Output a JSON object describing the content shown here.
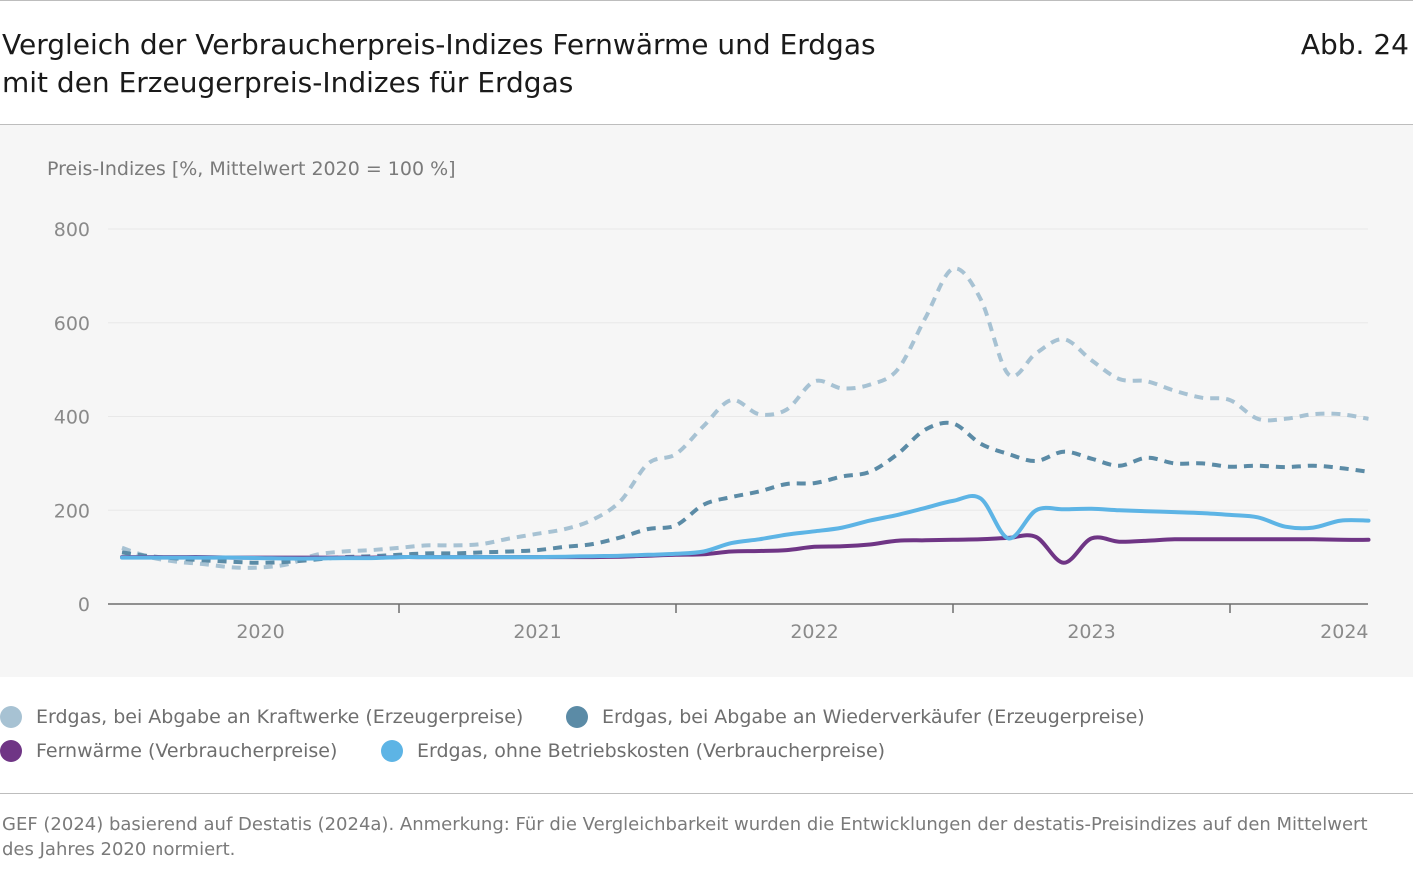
{
  "header": {
    "title_line1": "Vergleich der Verbraucherpreis-Indizes Fernwärme und Erdgas",
    "title_line2": "mit den Erzeugerpreis-Indizes für Erdgas",
    "figure_label": "Abb. 24"
  },
  "legend": {
    "items": [
      {
        "label": "Erdgas, bei Abgabe an Kraftwerke (Erzeugerpreise)",
        "color": "#a7c2d3"
      },
      {
        "label": "Erdgas, bei Abgabe an Wiederverkäufer (Erzeugerpreise)",
        "color": "#5b8ba6"
      },
      {
        "label": "Fernwärme (Verbraucherpreise)",
        "color": "#6f3585"
      },
      {
        "label": "Erdgas, ohne Betriebskosten (Verbraucherpreise)",
        "color": "#5db4e5"
      }
    ]
  },
  "footer": {
    "source": "GEF (2024) basierend auf Destatis (2024a). Anmerkung: Für die Vergleichbarkeit wurden die Entwicklungen der destatis-Preisindizes auf den Mittelwert des Jahres 2020 normiert."
  },
  "chart_data": {
    "type": "line",
    "title": "Vergleich der Verbraucherpreis-Indizes Fernwärme und Erdgas mit den Erzeugerpreis-Indizes für Erdgas",
    "ylabel": "Preis-Indizes [%, Mittelwert 2020 = 100 %]",
    "xlabel": "",
    "ylim": [
      0,
      800
    ],
    "yticks": [
      0,
      200,
      400,
      600,
      800
    ],
    "xlim": [
      0,
      45.5
    ],
    "x_unit": "months since Jan 2020 (0 = Jan 2020)",
    "year_labels": [
      {
        "label": "2020",
        "at": 5
      },
      {
        "label": "2021",
        "at": 15
      },
      {
        "label": "2022",
        "at": 25
      },
      {
        "label": "2023",
        "at": 35
      },
      {
        "label": "2024",
        "at": 45
      }
    ],
    "year_ticks": [
      10,
      20,
      30,
      40
    ],
    "grid": true,
    "series": [
      {
        "name": "Erdgas, bei Abgabe an Kraftwerke (Erzeugerpreise)",
        "color": "#a7c2d3",
        "dashed": true,
        "x": [
          0,
          1,
          2,
          3,
          4,
          5,
          6,
          7,
          8,
          9,
          10,
          11,
          12,
          13,
          14,
          15,
          16,
          17,
          18,
          19,
          20,
          21,
          22,
          23,
          24,
          25,
          26,
          27,
          28,
          29,
          30,
          31,
          32,
          33,
          34,
          35,
          36,
          37,
          38,
          39,
          40,
          41,
          42,
          43,
          44,
          45
        ],
        "values": [
          120,
          100,
          90,
          85,
          78,
          78,
          85,
          105,
          112,
          115,
          120,
          125,
          125,
          128,
          140,
          150,
          160,
          180,
          220,
          300,
          320,
          380,
          435,
          405,
          415,
          475,
          460,
          468,
          500,
          610,
          715,
          650,
          490,
          535,
          565,
          520,
          480,
          475,
          455,
          440,
          435,
          395,
          395,
          405,
          405,
          395
        ]
      },
      {
        "name": "Erdgas, bei Abgabe an Wiederverkäufer (Erzeugerpreise)",
        "color": "#5b8ba6",
        "dashed": true,
        "x": [
          0,
          1,
          2,
          3,
          4,
          5,
          6,
          7,
          8,
          9,
          10,
          11,
          12,
          13,
          14,
          15,
          16,
          17,
          18,
          19,
          20,
          21,
          22,
          23,
          24,
          25,
          26,
          27,
          28,
          29,
          30,
          31,
          32,
          33,
          34,
          35,
          36,
          37,
          38,
          39,
          40,
          41,
          42,
          43,
          44,
          45
        ],
        "values": [
          110,
          102,
          97,
          93,
          90,
          88,
          90,
          95,
          100,
          102,
          105,
          108,
          108,
          110,
          112,
          115,
          122,
          128,
          142,
          160,
          168,
          212,
          228,
          240,
          256,
          258,
          272,
          282,
          320,
          372,
          385,
          342,
          320,
          305,
          325,
          310,
          295,
          312,
          300,
          300,
          293,
          295,
          292,
          295,
          290,
          282
        ]
      },
      {
        "name": "Fernwärme (Verbraucherpreise)",
        "color": "#6f3585",
        "dashed": false,
        "x": [
          0,
          1,
          2,
          3,
          4,
          5,
          6,
          7,
          8,
          9,
          10,
          11,
          12,
          13,
          14,
          15,
          16,
          17,
          18,
          19,
          20,
          21,
          22,
          23,
          24,
          25,
          26,
          27,
          28,
          29,
          30,
          31,
          32,
          33,
          34,
          35,
          36,
          37,
          38,
          39,
          40,
          41,
          42,
          43,
          44,
          45
        ],
        "values": [
          100,
          100,
          100,
          100,
          99,
          99,
          99,
          99,
          99,
          99,
          100,
          100,
          100,
          100,
          100,
          100,
          100,
          100,
          101,
          103,
          105,
          106,
          112,
          113,
          115,
          122,
          123,
          127,
          135,
          136,
          137,
          138,
          141,
          143,
          88,
          140,
          133,
          135,
          138,
          138,
          138,
          138,
          138,
          138,
          137,
          137
        ]
      },
      {
        "name": "Erdgas, ohne Betriebskosten (Verbraucherpreise)",
        "color": "#5db4e5",
        "dashed": false,
        "x": [
          0,
          1,
          2,
          3,
          4,
          5,
          6,
          7,
          8,
          9,
          10,
          11,
          12,
          13,
          14,
          15,
          16,
          17,
          18,
          19,
          20,
          21,
          22,
          23,
          24,
          25,
          26,
          27,
          28,
          29,
          30,
          31,
          32,
          33,
          34,
          35,
          36,
          37,
          38,
          39,
          40,
          41,
          42,
          43,
          44,
          45
        ],
        "values": [
          99,
          99,
          99,
          99,
          99,
          98,
          97,
          97,
          98,
          98,
          100,
          100,
          100,
          100,
          100,
          100,
          101,
          102,
          103,
          105,
          107,
          112,
          130,
          138,
          148,
          155,
          163,
          178,
          190,
          205,
          220,
          225,
          140,
          200,
          202,
          203,
          200,
          198,
          196,
          194,
          190,
          185,
          165,
          163,
          178,
          178
        ]
      }
    ]
  }
}
